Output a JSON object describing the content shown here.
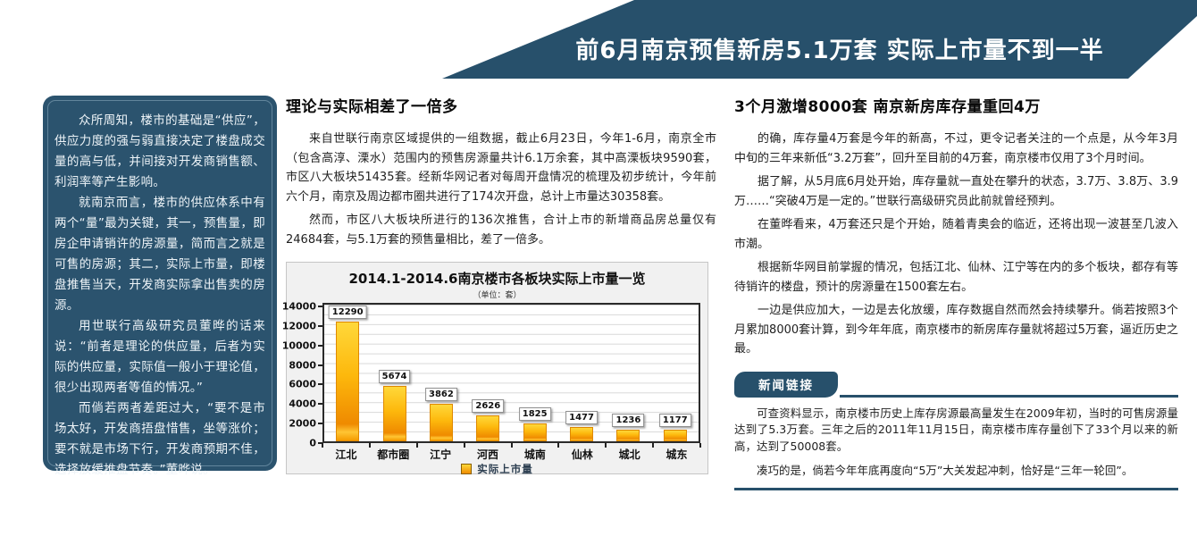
{
  "banner": {
    "title": "前6月南京预售新房5.1万套 实际上市量不到一半",
    "bg_color": "#27506b",
    "text_color": "#ffffff"
  },
  "sidebar": {
    "bg_color": "#2b536e",
    "paragraphs": [
      "众所周知，楼市的基础是“供应”，供应力度的强与弱直接决定了楼盘成交量的高与低，并间接对开发商销售额、利润率等产生影响。",
      "就南京而言，楼市的供应体系中有两个“量”最为关键，其一，预售量，即房企申请销许的房源量，简而言之就是可售的房源；其二，实际上市量，即楼盘推售当天，开发商实际拿出售卖的房源。",
      "用世联行高级研究员董晔的话来说：“前者是理论的供应量，后者为实际的供应量，实际值一般小于理论值，很少出现两者等值的情况。”",
      "而倘若两者差距过大，“要不是市场太好，开发商捂盘惜售，坐等涨价；要不就是市场下行，开发商预期不佳，选择放缓推盘节奏。”董晔说。"
    ]
  },
  "left_article": {
    "heading": "理论与实际相差了一倍多",
    "paragraphs": [
      "来自世联行南京区域提供的一组数据，截止6月23日，今年1-6月，南京全市（包含高淳、溧水）范围内的预售房源量共计6.1万余套，其中高溧板块9590套，市区八大板块51435套。经新华网记者对每周开盘情况的梳理及初步统计，今年前六个月，南京及周边都市圈共进行了174次开盘，总计上市量达30358套。",
      "然而，市区八大板块所进行的136次推售，合计上市的新增商品房总量仅有24684套，与5.1万套的预售量相比，差了一倍多。"
    ]
  },
  "chart_data": {
    "type": "bar",
    "title": "2014.1-2014.6南京楼市各板块实际上市量一览",
    "subtitle": "（单位：套）",
    "categories": [
      "江北",
      "都市圈",
      "江宁",
      "河西",
      "城南",
      "仙林",
      "城北",
      "城东"
    ],
    "values": [
      12290,
      5674,
      3862,
      2626,
      1825,
      1477,
      1236,
      1177
    ],
    "series_name": "实际上市量",
    "xlabel": "",
    "ylabel": "",
    "ylim": [
      0,
      14000
    ],
    "ytick_step": 2000,
    "grid_step": 1000,
    "grid": true,
    "legend_position": "bottom",
    "bar_color_top": "#ffd83a",
    "bar_color_bottom": "#f08c00"
  },
  "right_article": {
    "heading": "3个月激增8000套 南京新房库存量重回4万",
    "paragraphs": [
      "的确，库存量4万套是今年的新高，不过，更令记者关注的一个点是，从今年3月中旬的三年来新低“3.2万套”，回升至目前的4万套，南京楼市仅用了3个月时间。",
      "据了解，从5月底6月处开始，库存量就一直处在攀升的状态，3.7万、3.8万、3.9万……“突破4万是一定的。”世联行高级研究员此前就曾经预判。",
      "在董晔看来，4万套还只是个开始，随着青奥会的临近，还将出现一波甚至几波入市潮。",
      "根据新华网目前掌握的情况，包括江北、仙林、江宁等在内的多个板块，都存有等待销许的楼盘，预计的房源量在1500套左右。",
      "一边是供应加大，一边是去化放缓，库存数据自然而然会持续攀升。倘若按照3个月累加8000套计算，到今年年底，南京楼市的新房库存量就将超过5万套，逼近历史之最。"
    ]
  },
  "news_link": {
    "badge_label": "新闻链接",
    "paragraphs": [
      "可查资料显示，南京楼市历史上库存房源最高量发生在2009年初，当时的可售房源量达到了5.3万套。三年之后的2011年11月15日，南京楼市库存量创下了33个月以来的新高，达到了50008套。",
      "凑巧的是，倘若今年年底再度向“5万”大关发起冲刺，恰好是“三年一轮回”。"
    ]
  }
}
